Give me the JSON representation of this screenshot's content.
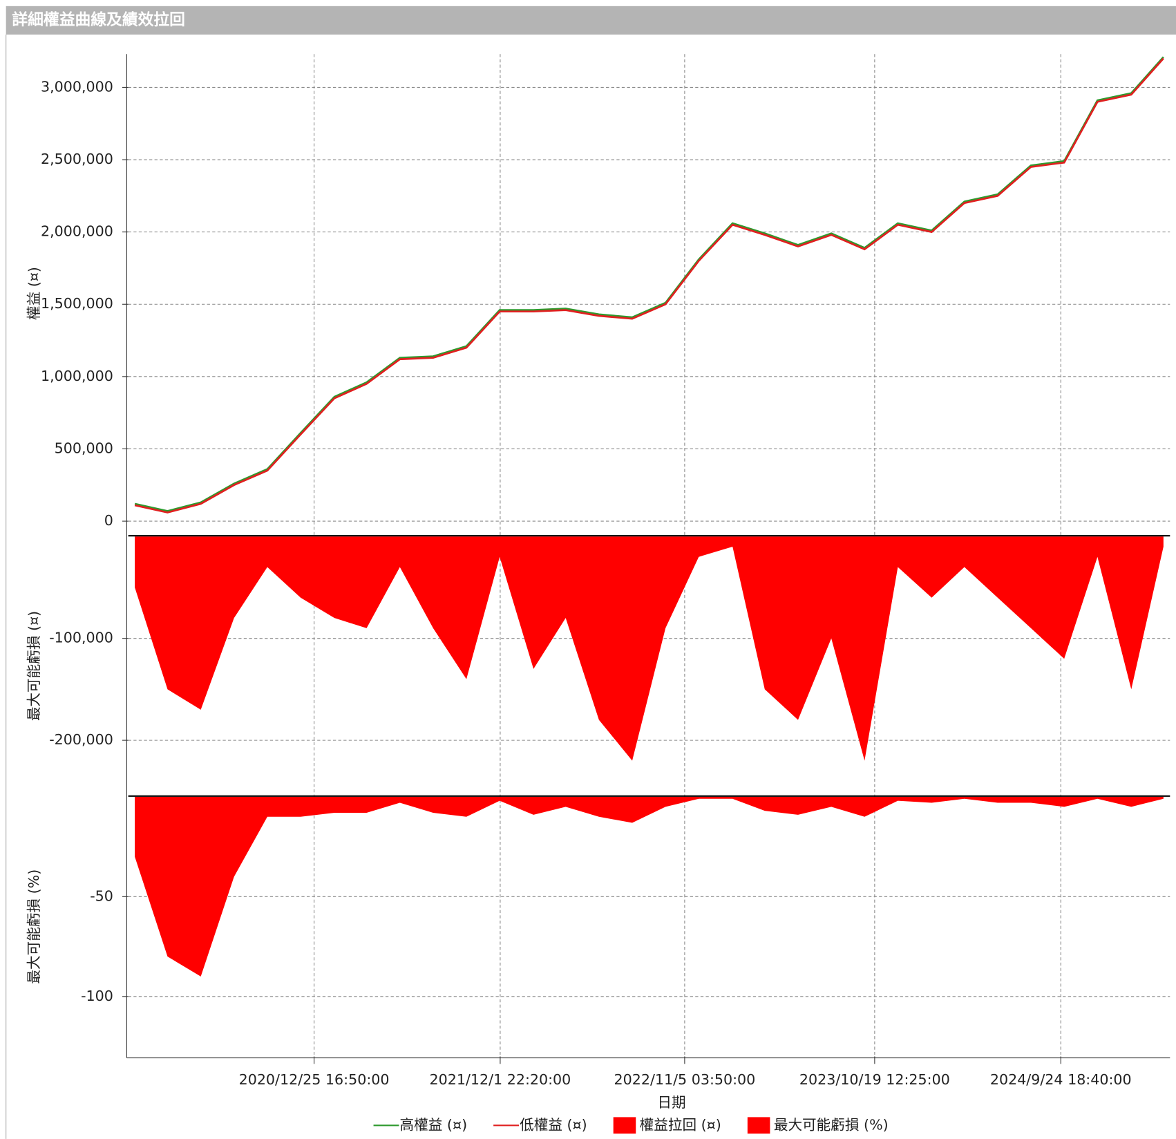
{
  "chart_data": {
    "type": "multi-panel",
    "title": "詳細權益曲線及績效拉回",
    "xlabel": "日期",
    "xlim": [
      "2020-01-20T00:00:00",
      "2025-04-13T00:00:00"
    ],
    "xticks": [
      {
        "value": "2020-12-25T16:50:00",
        "label": "2020/12/25 16:50:00"
      },
      {
        "value": "2021-12-01T22:20:00",
        "label": "2021/12/1 22:20:00"
      },
      {
        "value": "2022-11-05T03:50:00",
        "label": "2022/11/5 03:50:00"
      },
      {
        "value": "2023-10-19T12:25:00",
        "label": "2023/10/19 12:25:00"
      },
      {
        "value": "2024-09-24T18:40:00",
        "label": "2024/9/24 18:40:00"
      }
    ],
    "x": [
      "2020-02-01T00:00:00",
      "2020-04-01T00:00:00",
      "2020-06-01T00:00:00",
      "2020-08-01T00:00:00",
      "2020-10-01T00:00:00",
      "2020-12-01T00:00:00",
      "2021-02-01T00:00:00",
      "2021-04-01T00:00:00",
      "2021-06-01T00:00:00",
      "2021-08-01T00:00:00",
      "2021-10-01T00:00:00",
      "2021-12-01T00:00:00",
      "2022-02-01T00:00:00",
      "2022-04-01T00:00:00",
      "2022-06-01T00:00:00",
      "2022-08-01T00:00:00",
      "2022-10-01T00:00:00",
      "2022-12-01T00:00:00",
      "2023-02-01T00:00:00",
      "2023-04-01T00:00:00",
      "2023-06-01T00:00:00",
      "2023-08-01T00:00:00",
      "2023-10-01T00:00:00",
      "2023-12-01T00:00:00",
      "2024-02-01T00:00:00",
      "2024-04-01T00:00:00",
      "2024-06-01T00:00:00",
      "2024-08-01T00:00:00",
      "2024-10-01T00:00:00",
      "2024-12-01T00:00:00",
      "2025-02-01T00:00:00",
      "2025-04-01T00:00:00"
    ],
    "panels": [
      {
        "type": "line",
        "ylabel": "權益 (¤)",
        "ylim": [
          -80000,
          3230000
        ],
        "yticks": [
          0,
          {
            "value": 500000,
            "label": "500,000"
          },
          {
            "value": 1000000,
            "label": "1,000,000"
          },
          {
            "value": 1500000,
            "label": "1,500,000"
          },
          {
            "value": 2000000,
            "label": "2,000,000"
          },
          {
            "value": 2500000,
            "label": "2,500,000"
          },
          {
            "value": 3000000,
            "label": "3,000,000"
          }
        ],
        "series": [
          {
            "name": "高權益 (¤)",
            "color": "#2e9a2e",
            "values": [
              120000,
              70000,
              130000,
              260000,
              360000,
              610000,
              860000,
              960000,
              1130000,
              1140000,
              1210000,
              1460000,
              1460000,
              1470000,
              1430000,
              1410000,
              1510000,
              1810000,
              2060000,
              1990000,
              1910000,
              1990000,
              1890000,
              2060000,
              2010000,
              2210000,
              2260000,
              2460000,
              2490000,
              2910000,
              2960000,
              3210000
            ]
          },
          {
            "name": "低權益 (¤)",
            "color": "#e02020",
            "values": [
              110000,
              60000,
              120000,
              250000,
              350000,
              600000,
              850000,
              950000,
              1120000,
              1130000,
              1200000,
              1450000,
              1450000,
              1460000,
              1420000,
              1400000,
              1500000,
              1800000,
              2050000,
              1980000,
              1900000,
              1980000,
              1880000,
              2050000,
              2000000,
              2200000,
              2250000,
              2450000,
              2480000,
              2900000,
              2950000,
              3200000
            ]
          }
        ]
      },
      {
        "type": "area",
        "ylabel": "最大可能虧損 (¤)",
        "ylim": [
          -254000,
          0
        ],
        "yticks": [
          {
            "value": -200000,
            "label": "-200,000"
          },
          {
            "value": -100000,
            "label": "-100,000"
          }
        ],
        "series": [
          {
            "name": "權益拉回 (¤)",
            "color": "#ff0000",
            "values": [
              -50000,
              -150000,
              -170000,
              -80000,
              -30000,
              -60000,
              -80000,
              -90000,
              -30000,
              -90000,
              -140000,
              -20000,
              -130000,
              -80000,
              -180000,
              -220000,
              -90000,
              -20000,
              -10000,
              -150000,
              -180000,
              -100000,
              -220000,
              -30000,
              -60000,
              -30000,
              -60000,
              -90000,
              -120000,
              -20000,
              -150000,
              -10000
            ]
          }
        ]
      },
      {
        "type": "area",
        "ylabel": "最大可能虧損 (%)",
        "ylim": [
          -130,
          0
        ],
        "yticks": [
          -100,
          -50
        ],
        "series": [
          {
            "name": "最大可能虧損 (%)",
            "color": "#ff0000",
            "values": [
              -30,
              -80,
              -90,
              -40,
              -10,
              -10,
              -8,
              -8,
              -3,
              -8,
              -10,
              -2,
              -9,
              -5,
              -10,
              -13,
              -5,
              -1,
              -1,
              -7,
              -9,
              -5,
              -10,
              -2,
              -3,
              -1,
              -3,
              -3,
              -5,
              -1,
              -5,
              -1
            ]
          }
        ]
      }
    ]
  }
}
